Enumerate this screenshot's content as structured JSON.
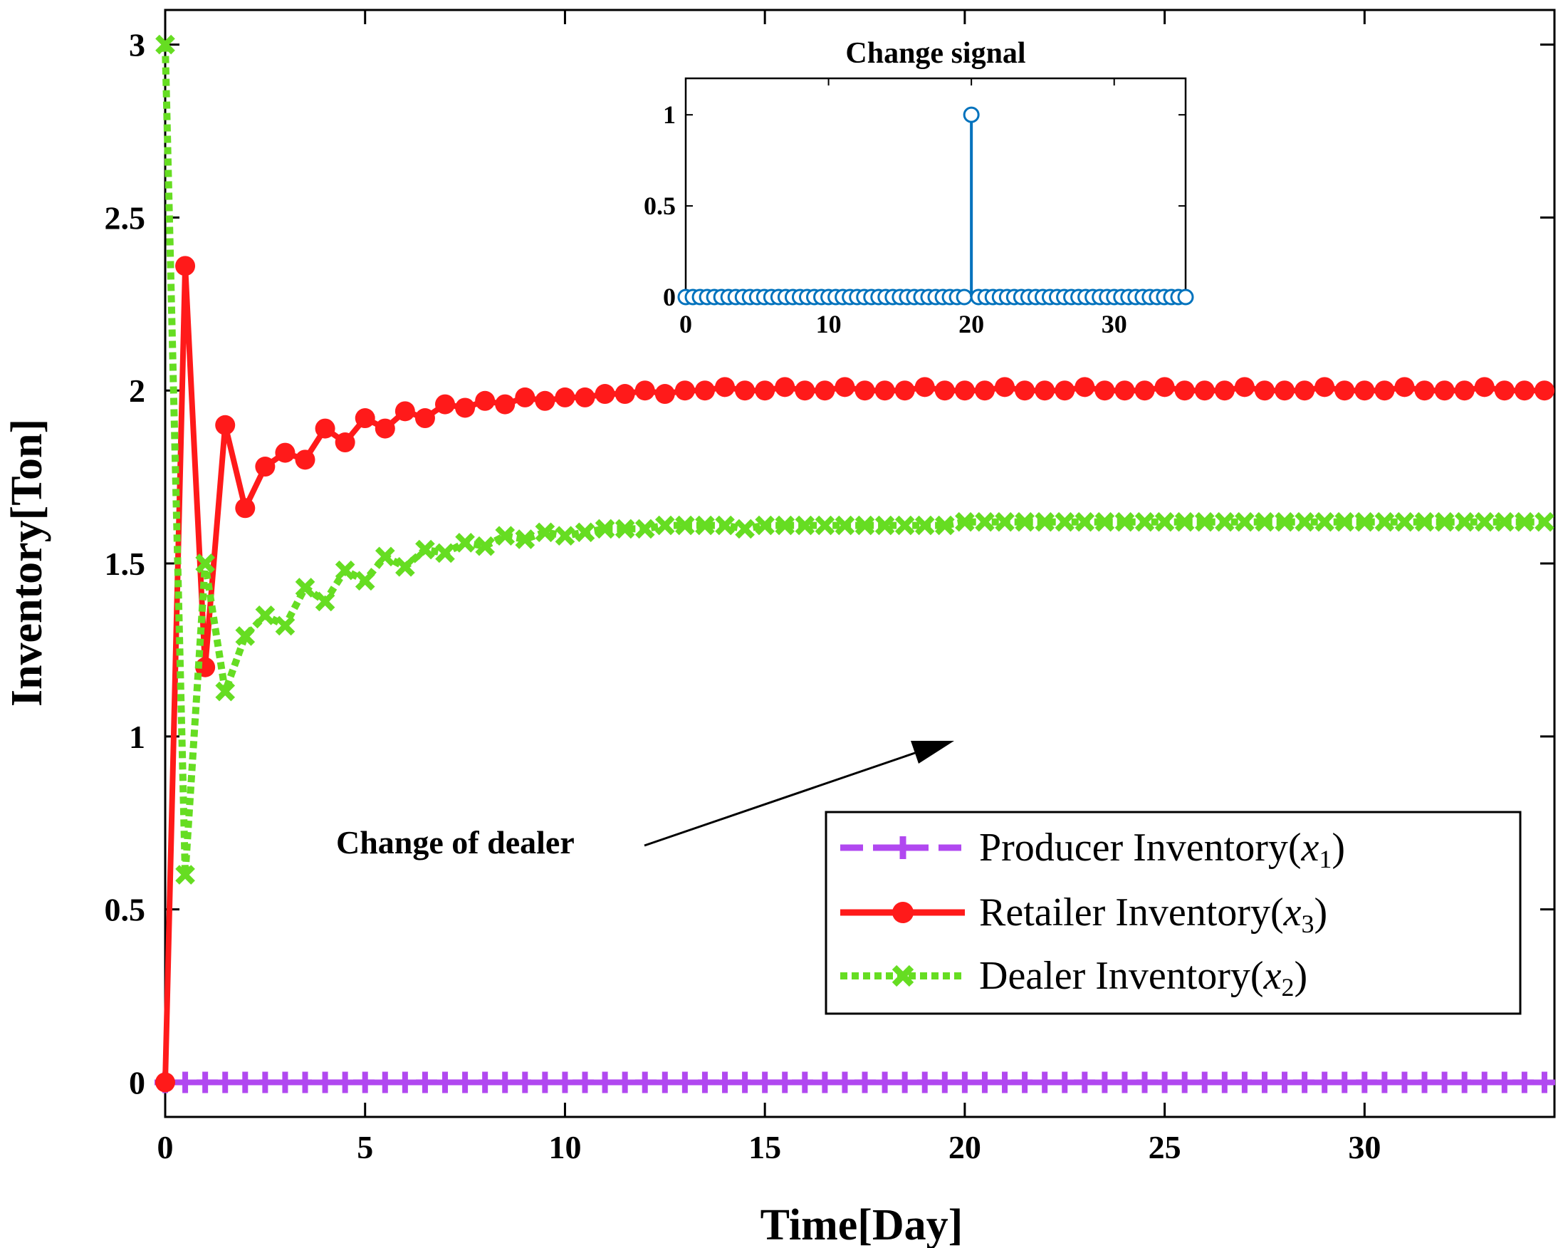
{
  "chart_data": [
    {
      "type": "line",
      "xlabel": "Time[Day]",
      "ylabel": "Inventory[Ton]",
      "xlim": [
        0,
        34.75
      ],
      "ylim": [
        -0.1,
        3.1
      ],
      "xticks": [
        0,
        5,
        10,
        15,
        20,
        25,
        30
      ],
      "yticks": [
        0,
        0.5,
        1,
        1.5,
        2,
        2.5,
        3
      ],
      "xtick_labels": [
        "0",
        "5",
        "10",
        "15",
        "20",
        "25",
        "30"
      ],
      "ytick_labels": [
        "0",
        "0.5",
        "1",
        "1.5",
        "2",
        "2.5",
        "3"
      ],
      "step": 0.5,
      "series": [
        {
          "name": "Producer Inventory",
          "legend_prefix": "Producer Inventory(",
          "legend_var": "x",
          "legend_sub": "1",
          "legend_suffix": ")",
          "color": "#B148F0",
          "style": "dashed",
          "marker": "plus",
          "values": [
            0,
            0,
            0,
            0,
            0,
            0,
            0,
            0,
            0,
            0,
            0,
            0,
            0,
            0,
            0,
            0,
            0,
            0,
            0,
            0,
            0,
            0,
            0,
            0,
            0,
            0,
            0,
            0,
            0,
            0,
            0,
            0,
            0,
            0,
            0,
            0,
            0,
            0,
            0,
            0,
            0,
            0,
            0,
            0,
            0,
            0,
            0,
            0,
            0,
            0,
            0,
            0,
            0,
            0,
            0,
            0,
            0,
            0,
            0,
            0,
            0,
            0,
            0,
            0,
            0,
            0,
            0,
            0,
            0,
            0
          ]
        },
        {
          "name": "Retailer Inventory",
          "legend_prefix": "Retailer Inventory(",
          "legend_var": "x",
          "legend_sub": "3",
          "legend_suffix": ")",
          "color": "#FF1A1A",
          "style": "solid",
          "marker": "circle",
          "values": [
            0,
            2.36,
            1.2,
            1.9,
            1.66,
            1.78,
            1.82,
            1.8,
            1.89,
            1.85,
            1.92,
            1.89,
            1.94,
            1.92,
            1.96,
            1.95,
            1.97,
            1.96,
            1.98,
            1.97,
            1.98,
            1.98,
            1.99,
            1.99,
            2.0,
            1.99,
            2.0,
            2.0,
            2.01,
            2.0,
            2.0,
            2.01,
            2.0,
            2.0,
            2.01,
            2.0,
            2.0,
            2.0,
            2.01,
            2.0,
            2.0,
            2.0,
            2.01,
            2.0,
            2.0,
            2.0,
            2.01,
            2.0,
            2.0,
            2.0,
            2.01,
            2.0,
            2.0,
            2.0,
            2.01,
            2.0,
            2.0,
            2.0,
            2.01,
            2.0,
            2.0,
            2.0,
            2.01,
            2.0,
            2.0,
            2.0,
            2.01,
            2.0,
            2.0,
            2.0
          ]
        },
        {
          "name": "Dealer Inventory",
          "legend_prefix": "Dealer Inventory(",
          "legend_var": "x",
          "legend_sub": "2",
          "legend_suffix": ")",
          "color": "#66DD22",
          "style": "dotted",
          "marker": "x",
          "values": [
            3,
            0.6,
            1.5,
            1.13,
            1.29,
            1.35,
            1.32,
            1.43,
            1.39,
            1.48,
            1.45,
            1.52,
            1.49,
            1.54,
            1.53,
            1.56,
            1.55,
            1.58,
            1.57,
            1.59,
            1.58,
            1.59,
            1.6,
            1.6,
            1.6,
            1.61,
            1.61,
            1.61,
            1.61,
            1.6,
            1.61,
            1.61,
            1.61,
            1.61,
            1.61,
            1.61,
            1.61,
            1.61,
            1.61,
            1.61,
            1.62,
            1.62,
            1.62,
            1.62,
            1.62,
            1.62,
            1.62,
            1.62,
            1.62,
            1.62,
            1.62,
            1.62,
            1.62,
            1.62,
            1.62,
            1.62,
            1.62,
            1.62,
            1.62,
            1.62,
            1.62,
            1.62,
            1.62,
            1.62,
            1.62,
            1.62,
            1.62,
            1.62,
            1.62,
            1.62
          ]
        }
      ],
      "annotation": {
        "text": "Change of dealer",
        "x_target": 19.7,
        "y_target": 1.01
      },
      "legend_position": "bottom-right",
      "grid": false
    },
    {
      "type": "stem",
      "title": "Change signal",
      "xlim": [
        0,
        35
      ],
      "ylim": [
        0,
        1.2
      ],
      "xticks": [
        0,
        10,
        20,
        30
      ],
      "yticks": [
        0,
        0.5,
        1
      ],
      "xtick_labels": [
        "0",
        "10",
        "20",
        "30"
      ],
      "ytick_labels": [
        "0",
        "0.5",
        "1"
      ],
      "step": 0.5,
      "color": "#0072BD",
      "impulse_at": 20,
      "impulse_value": 1
    }
  ]
}
